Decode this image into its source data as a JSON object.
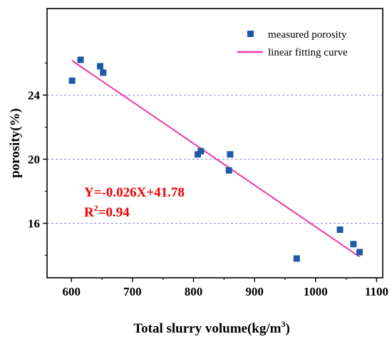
{
  "chart_data": {
    "type": "scatter",
    "xlabel_main": "Total slurry volume(kg/m",
    "xlabel_sup": "3",
    "xlabel_tail": ")",
    "ylabel": "porosity(%)",
    "xlim": [
      560,
      1110
    ],
    "ylim": [
      12.6,
      29.4
    ],
    "x_ticks": [
      600,
      700,
      800,
      900,
      1000,
      1100
    ],
    "y_ticks": [
      16,
      20,
      24
    ],
    "gridlines_y": [
      16,
      20,
      24
    ],
    "grid": "dashed horizontal at major y ticks",
    "legend_position": "top-right",
    "series": [
      {
        "name": "measured porosity",
        "kind": "scatter",
        "marker": "square",
        "color": "#1f5aa6",
        "points": [
          {
            "x": 601,
            "y": 24.9
          },
          {
            "x": 615,
            "y": 26.2
          },
          {
            "x": 647,
            "y": 25.8
          },
          {
            "x": 652,
            "y": 25.4
          },
          {
            "x": 807,
            "y": 20.3
          },
          {
            "x": 812,
            "y": 20.5
          },
          {
            "x": 858,
            "y": 19.3
          },
          {
            "x": 860,
            "y": 20.3
          },
          {
            "x": 969,
            "y": 13.8
          },
          {
            "x": 1040,
            "y": 15.6
          },
          {
            "x": 1062,
            "y": 14.7
          },
          {
            "x": 1072,
            "y": 14.2
          }
        ]
      },
      {
        "name": "linear fitting curve",
        "kind": "line",
        "color": "#ee3aa9",
        "points": [
          {
            "x": 601,
            "y": 26.15
          },
          {
            "x": 1072,
            "y": 13.91
          }
        ]
      }
    ],
    "annotations": {
      "equation": "Y=-0.026X+41.78",
      "r2_prefix": "R",
      "r2_sup": "2",
      "r2_value": "=0.94",
      "color": "#ee0000"
    }
  }
}
